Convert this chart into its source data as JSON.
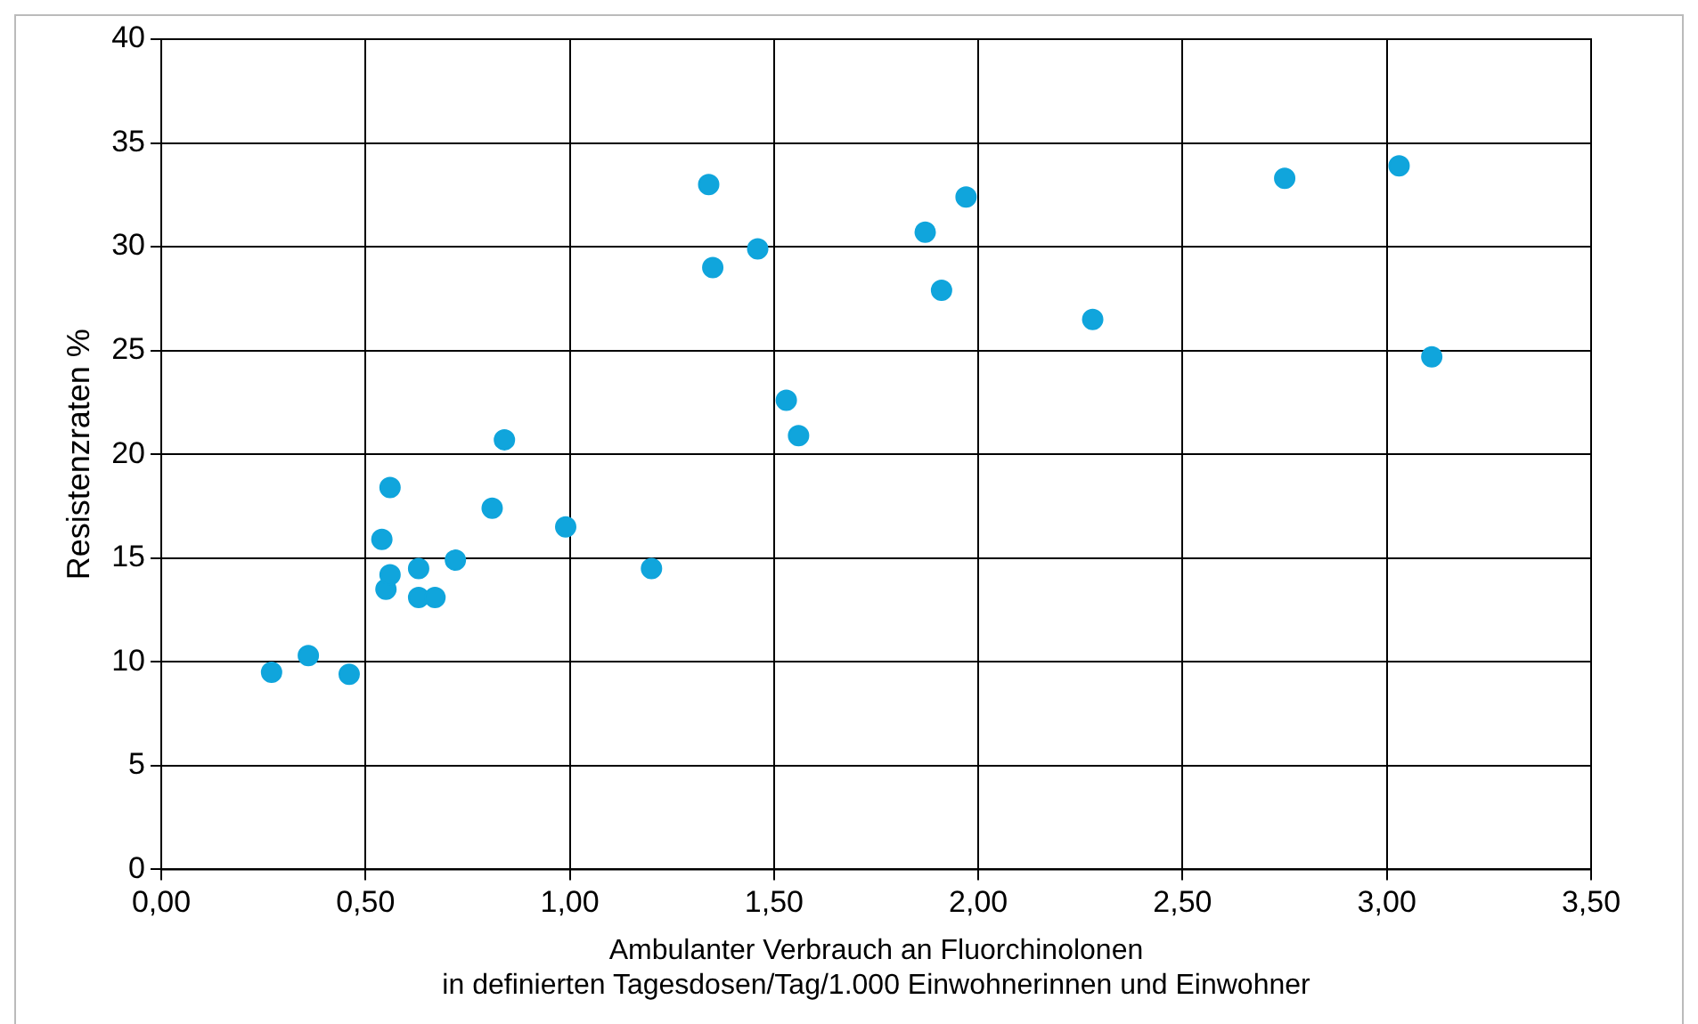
{
  "chart_data": {
    "type": "scatter",
    "xlabel": "Ambulanter Verbrauch an Fluorchinolonen\nin definierten Tagesdosen/Tag/1.000 Einwohnerinnen und Einwohner",
    "ylabel": "Resistenzraten %",
    "x": [
      0.27,
      0.36,
      0.46,
      0.54,
      0.55,
      0.56,
      0.56,
      0.63,
      0.63,
      0.67,
      0.72,
      0.81,
      0.84,
      0.99,
      1.2,
      1.34,
      1.35,
      1.46,
      1.53,
      1.56,
      1.87,
      1.91,
      1.97,
      2.28,
      2.75,
      3.03,
      3.11
    ],
    "values": [
      9.5,
      10.3,
      9.4,
      15.9,
      13.5,
      14.2,
      18.4,
      14.5,
      13.1,
      13.1,
      14.9,
      17.4,
      20.7,
      16.5,
      14.5,
      33.0,
      29.0,
      29.9,
      22.6,
      20.9,
      30.7,
      27.9,
      32.4,
      26.5,
      33.3,
      33.9,
      24.7
    ],
    "color": "#10a5dc",
    "marker": "circle",
    "grid": true,
    "legend": false,
    "xlim": [
      0,
      3.5
    ],
    "xticks": [
      {
        "value": 0,
        "label": "0,00"
      },
      {
        "value": 0.5,
        "label": "0,50"
      },
      {
        "value": 1,
        "label": "1,00"
      },
      {
        "value": 1.5,
        "label": "1,50"
      },
      {
        "value": 2,
        "label": "2,00"
      },
      {
        "value": 2.5,
        "label": "2,50"
      },
      {
        "value": 3,
        "label": "3,00"
      },
      {
        "value": 3.5,
        "label": "3,50"
      }
    ],
    "ylim": [
      0,
      40
    ],
    "yticks": [
      0,
      5,
      10,
      15,
      20,
      25,
      30,
      35,
      40
    ]
  }
}
